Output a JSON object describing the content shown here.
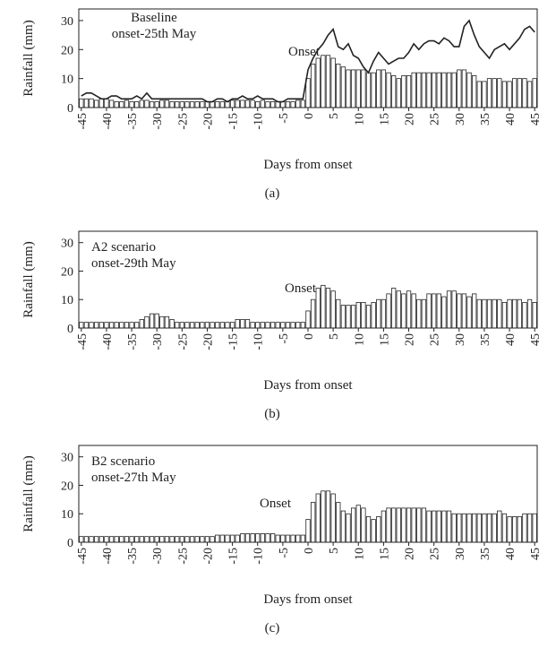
{
  "chart_data": [
    {
      "type": "bar",
      "ylabel": "Rainfall (mm)",
      "xlabel": "Days from onset",
      "panel_label": "(a)",
      "annotation_lines": [
        "Baseline",
        "onset-25th May"
      ],
      "onset_label": "Onset",
      "xlim": [
        -45.5,
        45.5
      ],
      "ylim": [
        0,
        34
      ],
      "xticks": [
        -45,
        -40,
        -35,
        -30,
        -25,
        -20,
        -15,
        -10,
        -5,
        0,
        5,
        10,
        15,
        20,
        25,
        30,
        35,
        40,
        45
      ],
      "yticks": [
        0,
        10,
        20,
        30
      ],
      "x": [
        -45,
        -44,
        -43,
        -42,
        -41,
        -40,
        -39,
        -38,
        -37,
        -36,
        -35,
        -34,
        -33,
        -32,
        -31,
        -30,
        -29,
        -28,
        -27,
        -26,
        -25,
        -24,
        -23,
        -22,
        -21,
        -20,
        -19,
        -18,
        -17,
        -16,
        -15,
        -14,
        -13,
        -12,
        -11,
        -10,
        -9,
        -8,
        -7,
        -6,
        -5,
        -4,
        -3,
        -2,
        -1,
        0,
        1,
        2,
        3,
        4,
        5,
        6,
        7,
        8,
        9,
        10,
        11,
        12,
        13,
        14,
        15,
        16,
        17,
        18,
        19,
        20,
        21,
        22,
        23,
        24,
        25,
        26,
        27,
        28,
        29,
        30,
        31,
        32,
        33,
        34,
        35,
        36,
        37,
        38,
        39,
        40,
        41,
        42,
        43,
        44,
        45
      ],
      "series": [
        {
          "type": "bar",
          "color": "#ffffff",
          "values": [
            3,
            3,
            3,
            2.5,
            3,
            3,
            2.5,
            2,
            2,
            2.5,
            2,
            2,
            2.5,
            2.5,
            2,
            2,
            2.5,
            2.5,
            2,
            2,
            2,
            2,
            2,
            2,
            2,
            2,
            2,
            2,
            2,
            2,
            2.5,
            2.5,
            2.5,
            2.5,
            2.5,
            2,
            2.5,
            2,
            2,
            2,
            2,
            2,
            2,
            2.5,
            2.5,
            10,
            15,
            17,
            18,
            18,
            17,
            15,
            14,
            13,
            13,
            13,
            13,
            12,
            12,
            13,
            13,
            12,
            11,
            10,
            11,
            11,
            12,
            12,
            12,
            12,
            12,
            12,
            12,
            12,
            12,
            13,
            13,
            12,
            11,
            9,
            9,
            10,
            10,
            10,
            9,
            9,
            10,
            10,
            10,
            9,
            10
          ]
        },
        {
          "type": "line",
          "color": "#222222",
          "values": [
            4,
            5,
            5,
            4,
            3,
            3,
            4,
            4,
            3,
            3,
            3,
            4,
            3,
            5,
            3,
            3,
            3,
            3,
            3,
            3,
            3,
            3,
            3,
            3,
            3,
            2,
            2,
            3,
            3,
            2,
            3,
            3,
            4,
            3,
            3,
            4,
            3,
            3,
            3,
            2,
            2,
            3,
            3,
            3,
            3,
            13,
            17,
            20,
            22,
            25,
            27,
            21,
            20,
            22,
            18,
            17,
            14,
            12,
            16,
            19,
            17,
            15,
            16,
            17,
            17,
            19,
            22,
            20,
            22,
            23,
            23,
            22,
            24,
            23,
            21,
            21,
            28,
            30,
            25,
            21,
            19,
            17,
            20,
            21,
            22,
            20,
            22,
            24,
            27,
            28,
            26
          ]
        }
      ]
    },
    {
      "type": "bar",
      "ylabel": "Rainfall (mm)",
      "xlabel": "Days from onset",
      "panel_label": "(b)",
      "annotation_lines": [
        "A2 scenario",
        "onset-29th May"
      ],
      "onset_label": "Onset",
      "xlim": [
        -45.5,
        45.5
      ],
      "ylim": [
        0,
        34
      ],
      "xticks": [
        -45,
        -40,
        -35,
        -30,
        -25,
        -20,
        -15,
        -10,
        -5,
        0,
        5,
        10,
        15,
        20,
        25,
        30,
        35,
        40,
        45
      ],
      "yticks": [
        0,
        10,
        20,
        30
      ],
      "x": [
        -45,
        -44,
        -43,
        -42,
        -41,
        -40,
        -39,
        -38,
        -37,
        -36,
        -35,
        -34,
        -33,
        -32,
        -31,
        -30,
        -29,
        -28,
        -27,
        -26,
        -25,
        -24,
        -23,
        -22,
        -21,
        -20,
        -19,
        -18,
        -17,
        -16,
        -15,
        -14,
        -13,
        -12,
        -11,
        -10,
        -9,
        -8,
        -7,
        -6,
        -5,
        -4,
        -3,
        -2,
        -1,
        0,
        1,
        2,
        3,
        4,
        5,
        6,
        7,
        8,
        9,
        10,
        11,
        12,
        13,
        14,
        15,
        16,
        17,
        18,
        19,
        20,
        21,
        22,
        23,
        24,
        25,
        26,
        27,
        28,
        29,
        30,
        31,
        32,
        33,
        34,
        35,
        36,
        37,
        38,
        39,
        40,
        41,
        42,
        43,
        44,
        45
      ],
      "series": [
        {
          "type": "bar",
          "color": "#ffffff",
          "values": [
            2,
            2,
            2,
            2,
            2,
            2,
            2,
            2,
            2,
            2,
            2,
            2,
            3,
            4,
            5,
            5,
            4,
            4,
            3,
            2,
            2,
            2,
            2,
            2,
            2,
            2,
            2,
            2,
            2,
            2,
            2,
            3,
            3,
            3,
            2,
            2,
            2,
            2,
            2,
            2,
            2,
            2,
            2,
            2,
            2,
            6,
            10,
            14,
            15,
            14,
            13,
            10,
            8,
            8,
            8,
            9,
            9,
            8,
            9,
            10,
            10,
            12,
            14,
            13,
            12,
            13,
            12,
            10,
            10,
            12,
            12,
            12,
            11,
            13,
            13,
            12,
            12,
            11,
            12,
            10,
            10,
            10,
            10,
            10,
            9,
            10,
            10,
            10,
            9,
            10,
            9
          ]
        }
      ]
    },
    {
      "type": "bar",
      "ylabel": "Rainfall (mm)",
      "xlabel": "Days from onset",
      "panel_label": "(c)",
      "annotation_lines": [
        "B2 scenario",
        "onset-27th May"
      ],
      "onset_label": "Onset",
      "xlim": [
        -45.5,
        45.5
      ],
      "ylim": [
        0,
        34
      ],
      "xticks": [
        -45,
        -40,
        -35,
        -30,
        -25,
        -20,
        -15,
        -10,
        -5,
        0,
        5,
        10,
        15,
        20,
        25,
        30,
        35,
        40,
        45
      ],
      "yticks": [
        0,
        10,
        20,
        30
      ],
      "x": [
        -45,
        -44,
        -43,
        -42,
        -41,
        -40,
        -39,
        -38,
        -37,
        -36,
        -35,
        -34,
        -33,
        -32,
        -31,
        -30,
        -29,
        -28,
        -27,
        -26,
        -25,
        -24,
        -23,
        -22,
        -21,
        -20,
        -19,
        -18,
        -17,
        -16,
        -15,
        -14,
        -13,
        -12,
        -11,
        -10,
        -9,
        -8,
        -7,
        -6,
        -5,
        -4,
        -3,
        -2,
        -1,
        0,
        1,
        2,
        3,
        4,
        5,
        6,
        7,
        8,
        9,
        10,
        11,
        12,
        13,
        14,
        15,
        16,
        17,
        18,
        19,
        20,
        21,
        22,
        23,
        24,
        25,
        26,
        27,
        28,
        29,
        30,
        31,
        32,
        33,
        34,
        35,
        36,
        37,
        38,
        39,
        40,
        41,
        42,
        43,
        44,
        45
      ],
      "series": [
        {
          "type": "bar",
          "color": "#ffffff",
          "values": [
            2,
            2,
            2,
            2,
            2,
            2,
            2,
            2,
            2,
            2,
            2,
            2,
            2,
            2,
            2,
            2,
            2,
            2,
            2,
            2,
            2,
            2,
            2,
            2,
            2,
            2,
            2,
            2.5,
            2.5,
            2.5,
            2.5,
            2.5,
            3,
            3,
            3,
            3,
            3,
            3,
            3,
            2.5,
            2.5,
            2.5,
            2.5,
            2.5,
            2.5,
            8,
            14,
            17,
            18,
            18,
            17,
            14,
            11,
            10,
            12,
            13,
            12,
            9,
            8,
            9,
            11,
            12,
            12,
            12,
            12,
            12,
            12,
            12,
            12,
            11,
            11,
            11,
            11,
            11,
            10,
            10,
            10,
            10,
            10,
            10,
            10,
            10,
            10,
            11,
            10,
            9,
            9,
            9,
            10,
            10,
            10
          ]
        }
      ]
    }
  ]
}
